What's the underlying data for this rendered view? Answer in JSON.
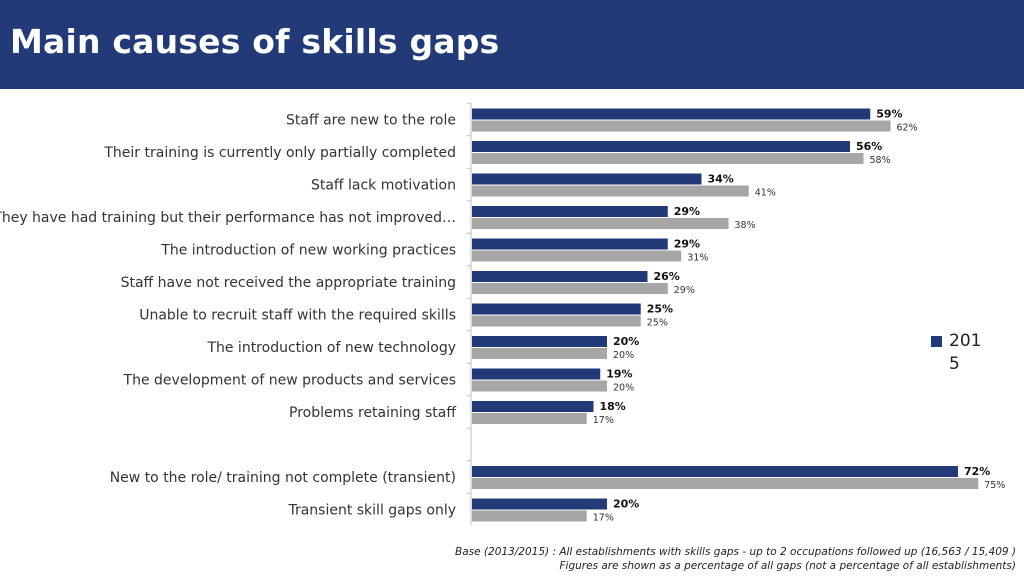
{
  "page": {
    "title": "Main causes of skills gaps",
    "footnote_line1": "Base (2013/2015) : All establishments with skills gaps - up to 2 occupations followed up (16,563 / 15,409 )",
    "footnote_line2": "Figures are shown as a percentage of all gaps (not a percentage of all establishments)"
  },
  "colors": {
    "header": "#223a78",
    "series_2015": "#223a78",
    "series_2013": "#a6a6a6"
  },
  "chart_data": {
    "type": "bar",
    "orientation": "horizontal",
    "categories": [
      "Staff are new to the role",
      "Their training is currently only partially completed",
      "Staff lack motivation",
      "They have had training but their performance has not improved…",
      "The introduction of new working practices",
      "Staff have not received the appropriate training",
      "Unable to recruit staff with the required skills",
      "The introduction of new technology",
      "The development of new products and services",
      "Problems retaining staff",
      "",
      "New to the role/ training not complete (transient)",
      "Transient skill gaps only"
    ],
    "series": [
      {
        "name": "2015",
        "color": "#223a78",
        "values": [
          59,
          56,
          34,
          29,
          29,
          26,
          25,
          20,
          19,
          18,
          null,
          72,
          20
        ]
      },
      {
        "color": "#a6a6a6",
        "values": [
          62,
          58,
          41,
          38,
          31,
          29,
          25,
          20,
          20,
          17,
          null,
          75,
          17
        ]
      }
    ],
    "value_format": "percent",
    "xlim": [
      0,
      80
    ],
    "grid": false,
    "legend": {
      "position": "right",
      "entries": [
        "2015"
      ]
    }
  }
}
